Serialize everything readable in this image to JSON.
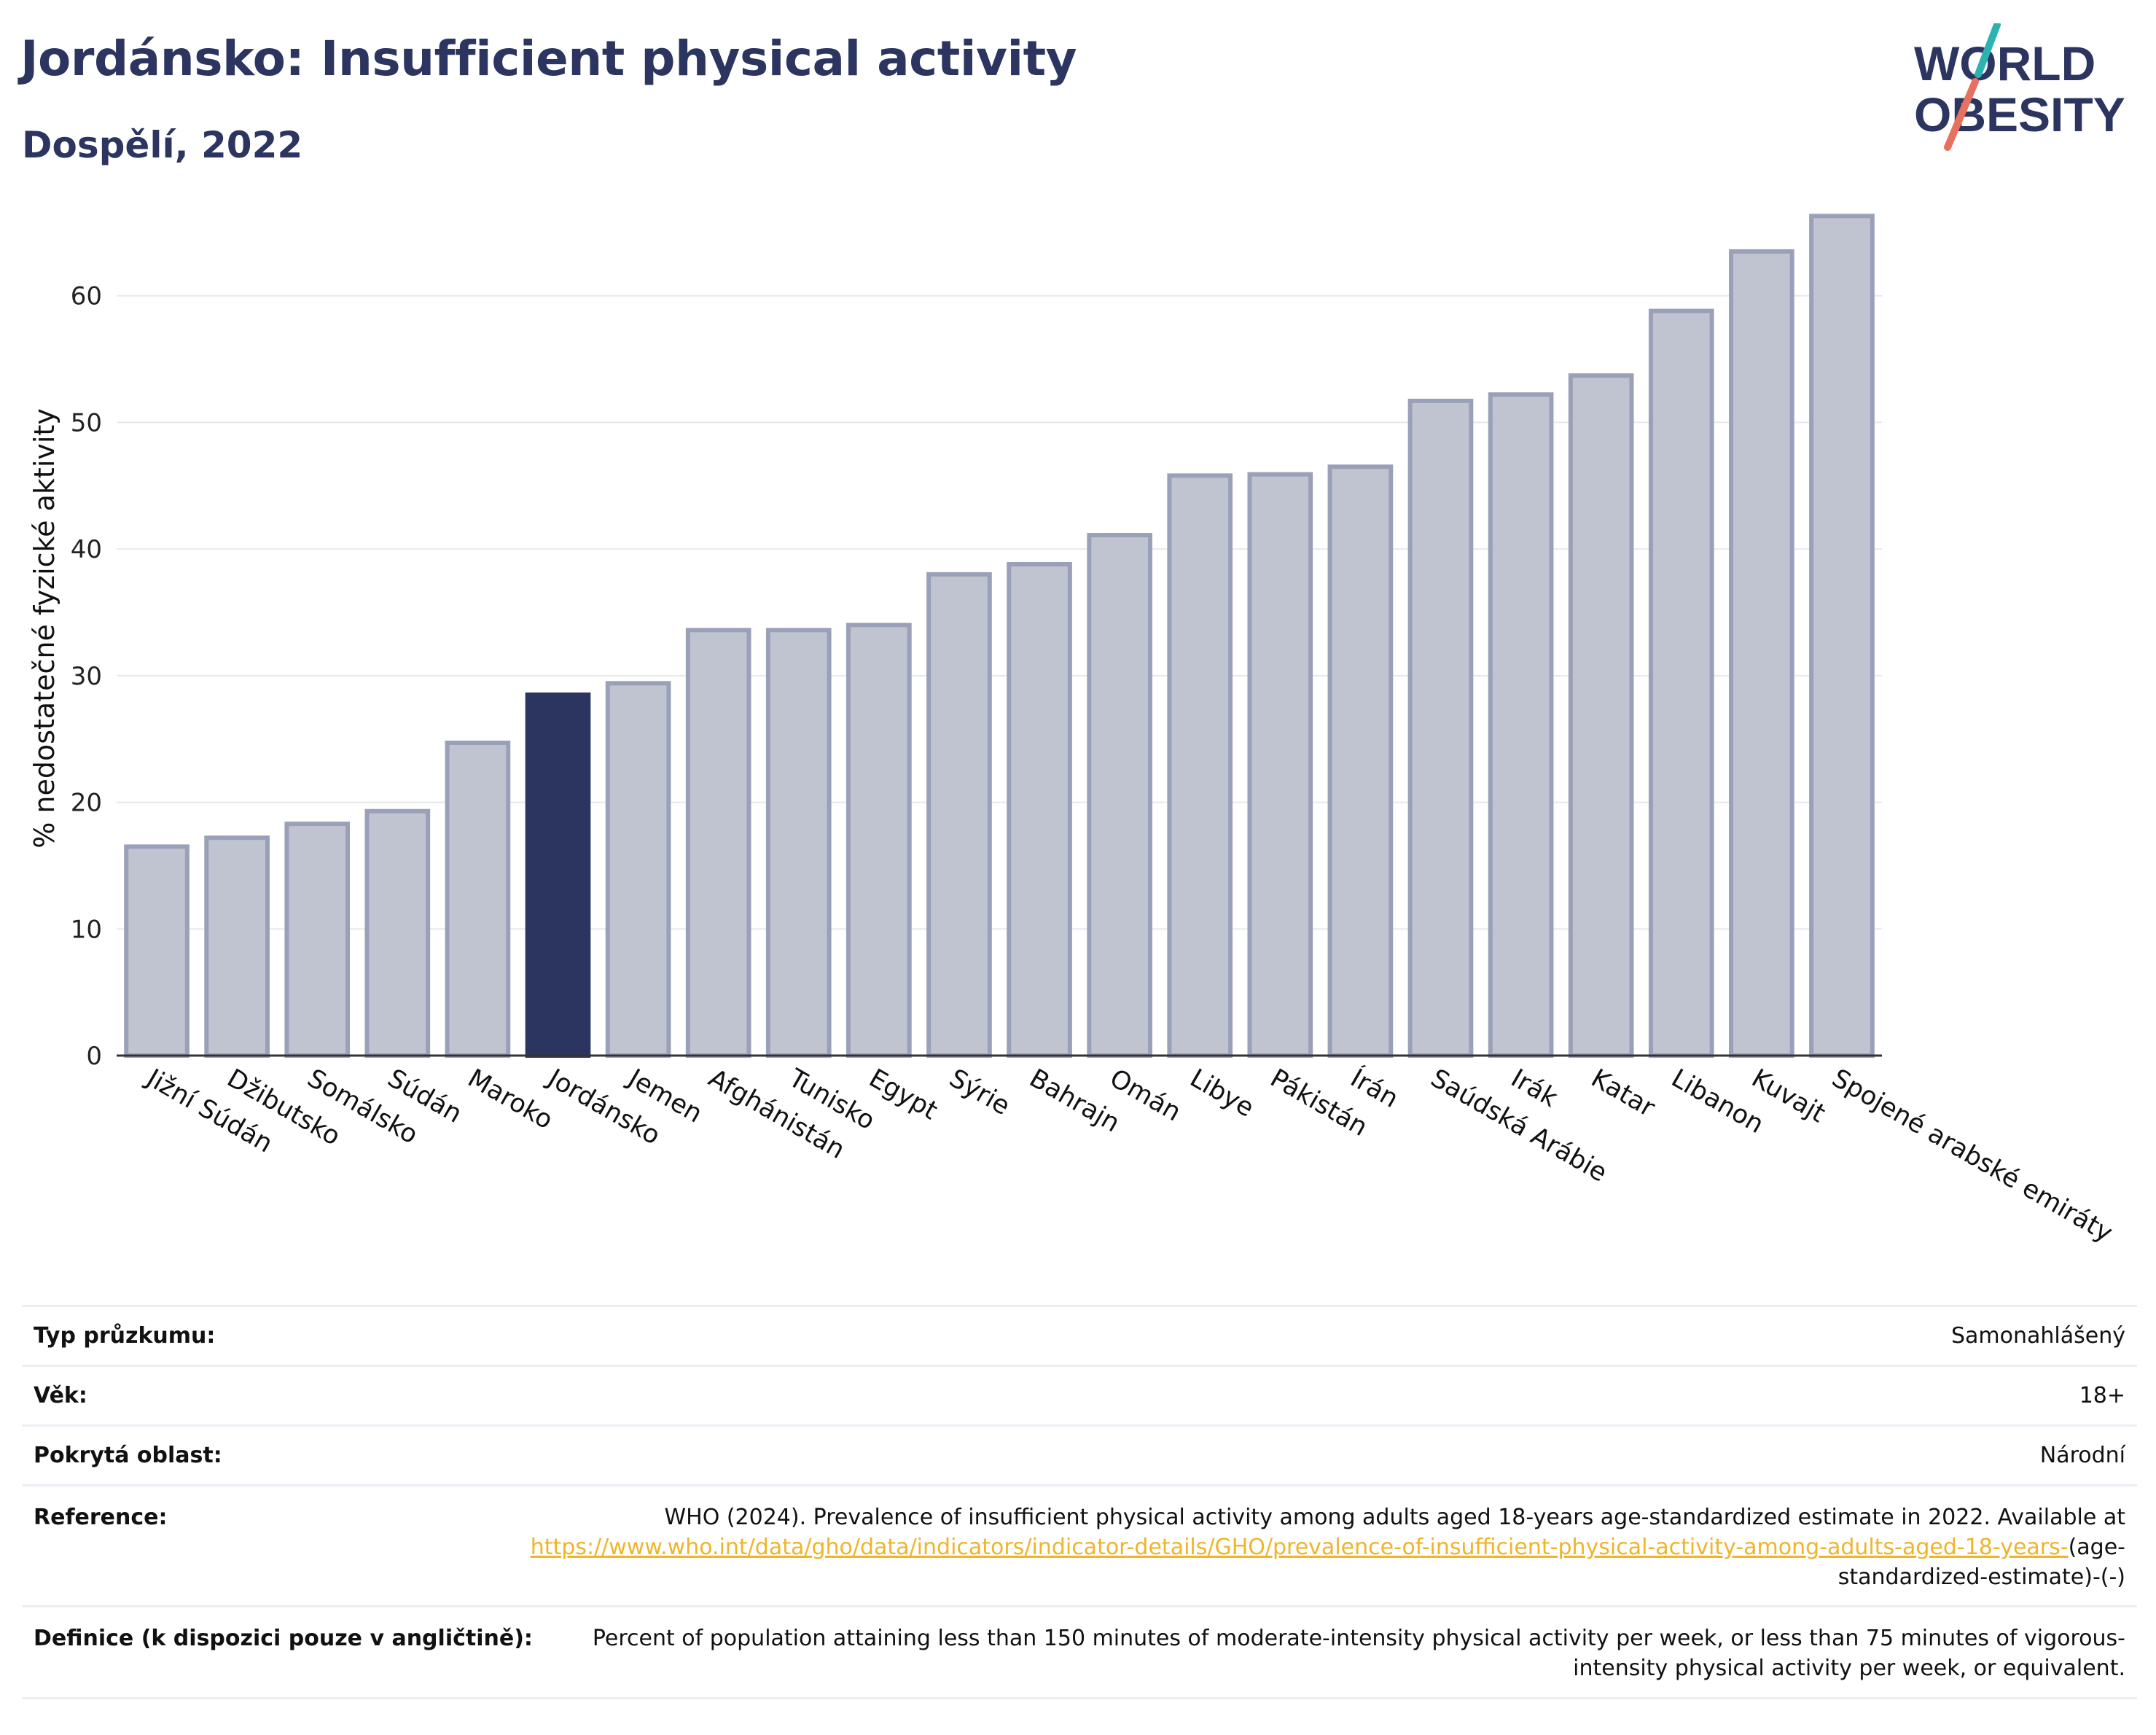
{
  "title": "Jordánsko: Insufficient physical activity",
  "subtitle": "Dospělí, 2022",
  "logo": {
    "line1": "WORLD",
    "line2": "OBESITY",
    "colors": {
      "text": "#2b3560",
      "slash_top": "#2ab3b1",
      "slash_bottom": "#e8705f"
    }
  },
  "colors": {
    "bar": "#c0c3d0",
    "bar_edge": "#9aa0b8",
    "highlight": "#2b3560",
    "grid": "#e6e8ef",
    "axis": "#333333"
  },
  "chart_data": {
    "type": "bar",
    "ylabel": "% nedostatečné fyzické aktivity",
    "xlabel": "",
    "ylim": [
      0,
      70
    ],
    "yticks": [
      0,
      10,
      20,
      30,
      40,
      50,
      60
    ],
    "grid": true,
    "highlight": "Jordánsko",
    "categories": [
      "Jižní Súdán",
      "Džibutsko",
      "Somálsko",
      "Súdán",
      "Maroko",
      "Jordánsko",
      "Jemen",
      "Afghánistán",
      "Tunisko",
      "Egypt",
      "Sýrie",
      "Bahrajn",
      "Omán",
      "Libye",
      "Pákistán",
      "Írán",
      "Saúdská Arábie",
      "Irák",
      "Katar",
      "Libanon",
      "Kuvajt",
      "Spojené arabské emiráty"
    ],
    "values": [
      16.5,
      17.2,
      18.3,
      19.3,
      24.7,
      28.5,
      29.4,
      33.6,
      33.6,
      34.0,
      38.0,
      38.8,
      41.1,
      45.8,
      45.9,
      46.5,
      51.7,
      52.2,
      53.7,
      58.8,
      63.5,
      66.3
    ]
  },
  "info": {
    "survey_type_label": "Typ průzkumu:",
    "survey_type_value": "Samonahlášený",
    "age_label": "Věk:",
    "age_value": "18+",
    "coverage_label": "Pokrytá oblast:",
    "coverage_value": "Národní",
    "reference_label": "Reference:",
    "reference_text": "WHO (2024). Prevalence of insufficient physical activity among adults aged 18-years age-standardized estimate in 2022. Available at",
    "reference_link": "https://www.who.int/data/gho/data/indicators/indicator-details/GHO/prevalence-of-insufficient-physical-activity-among-adults-aged-18-years-",
    "reference_suffix": "(age-standardized-estimate)-(-)",
    "definition_label": "Definice (k dispozici pouze v angličtině):",
    "definition_text": "Percent of population attaining less than 150 minutes of moderate-intensity physical activity per week, or less than 75 minutes of vigorous-intensity physical activity per week, or equivalent."
  }
}
